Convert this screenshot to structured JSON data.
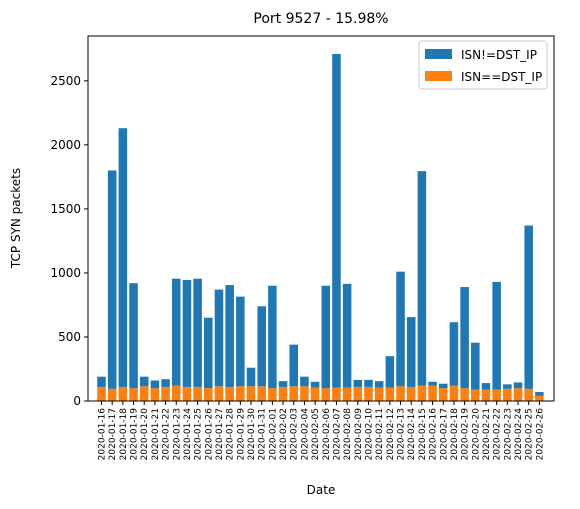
{
  "chart_data": {
    "type": "bar",
    "stacked": true,
    "title": "Port 9527 - 15.98%",
    "xlabel": "Date",
    "ylabel": "TCP SYN packets",
    "ylim": [
      0,
      2850
    ],
    "yticks": [
      0,
      500,
      1000,
      1500,
      2000,
      2500
    ],
    "grid": false,
    "legend_position": "top-right",
    "categories": [
      "2020-01-16",
      "2020-01-17",
      "2020-01-18",
      "2020-01-19",
      "2020-01-20",
      "2020-01-21",
      "2020-01-22",
      "2020-01-23",
      "2020-01-24",
      "2020-01-25",
      "2020-01-26",
      "2020-01-27",
      "2020-01-28",
      "2020-01-29",
      "2020-01-30",
      "2020-01-31",
      "2020-02-01",
      "2020-02-02",
      "2020-02-03",
      "2020-02-04",
      "2020-02-05",
      "2020-02-06",
      "2020-02-07",
      "2020-02-08",
      "2020-02-09",
      "2020-02-10",
      "2020-02-11",
      "2020-02-12",
      "2020-02-13",
      "2020-02-14",
      "2020-02-15",
      "2020-02-16",
      "2020-02-17",
      "2020-02-18",
      "2020-02-19",
      "2020-02-20",
      "2020-02-21",
      "2020-02-22",
      "2020-02-23",
      "2020-02-24",
      "2020-02-25",
      "2020-02-26"
    ],
    "series": [
      {
        "name": "ISN==DST_IP",
        "color": "#ff7f0e",
        "values": [
          110,
          95,
          110,
          100,
          115,
          100,
          110,
          120,
          110,
          110,
          100,
          115,
          110,
          115,
          115,
          115,
          100,
          110,
          115,
          115,
          105,
          100,
          105,
          105,
          110,
          110,
          105,
          105,
          115,
          110,
          120,
          120,
          100,
          120,
          100,
          90,
          90,
          90,
          95,
          100,
          95,
          40
        ]
      },
      {
        "name": "ISN!=DST_IP",
        "color": "#1f77b4",
        "values": [
          80,
          1705,
          2020,
          820,
          75,
          60,
          60,
          835,
          835,
          845,
          550,
          755,
          795,
          700,
          145,
          625,
          800,
          45,
          325,
          75,
          45,
          800,
          2605,
          810,
          55,
          55,
          50,
          245,
          895,
          545,
          1675,
          30,
          35,
          495,
          790,
          365,
          50,
          840,
          35,
          45,
          1275,
          30
        ]
      }
    ]
  }
}
